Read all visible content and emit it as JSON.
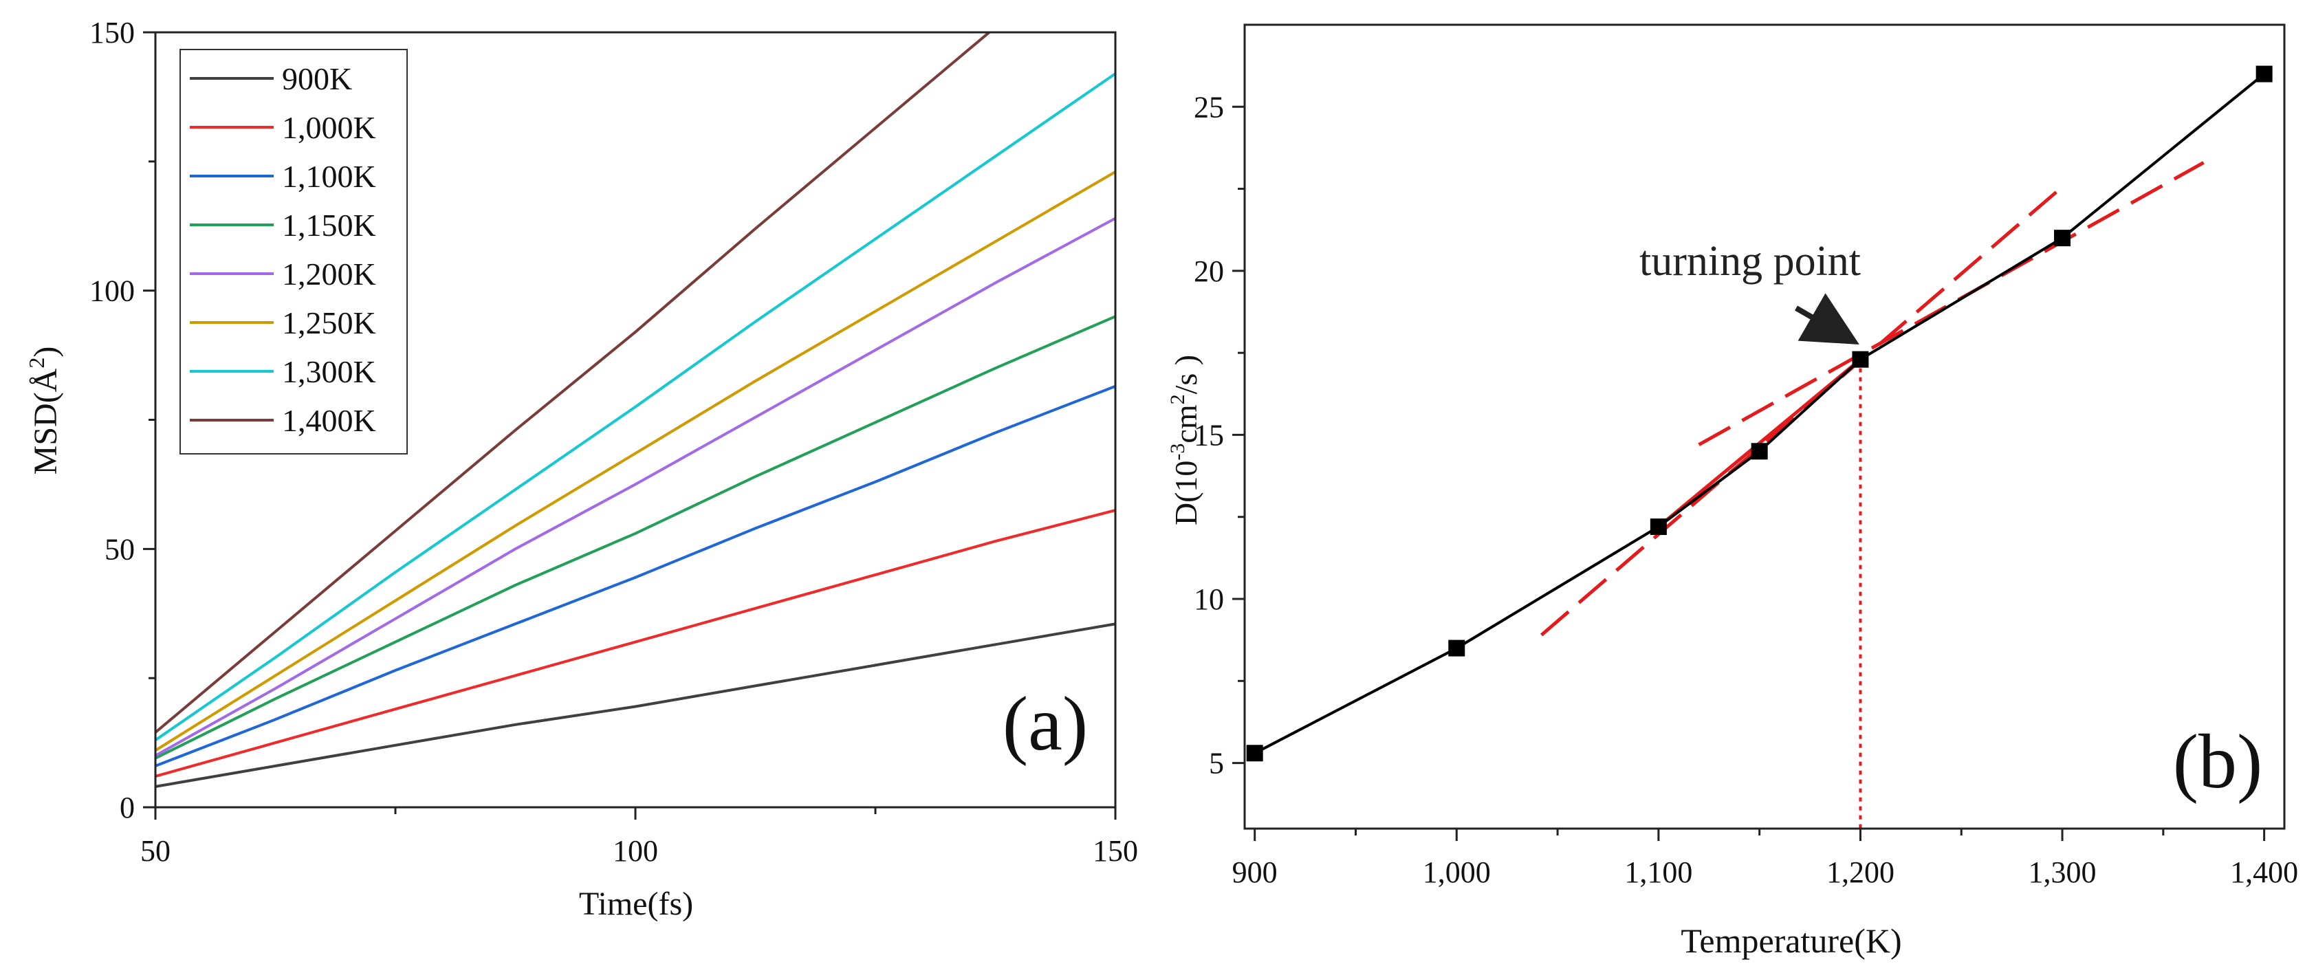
{
  "chart_data": [
    {
      "type": "line",
      "panel_label": "(a)",
      "xlabel": "Time(fs)",
      "ylabel": "MSD(Å²)",
      "ylabel_parts": {
        "base": "MSD(",
        "unit": "Å",
        "sup": "2",
        "close": ")"
      },
      "xlim": [
        50,
        150
      ],
      "ylim": [
        0,
        150
      ],
      "xticks": [
        50,
        100,
        150
      ],
      "yticks": [
        0,
        50,
        100,
        150
      ],
      "grid": false,
      "legend_position": "top-left",
      "x": [
        50,
        62.5,
        75,
        87.5,
        100,
        112.5,
        125,
        137.5,
        150
      ],
      "series": [
        {
          "name": "900K",
          "color": "#404040",
          "values": [
            4,
            8,
            12,
            16,
            19.5,
            23.5,
            27.5,
            31.5,
            35.5
          ]
        },
        {
          "name": "1,000K",
          "color": "#ee2b2b",
          "values": [
            6,
            12.5,
            19,
            25.5,
            32,
            38.5,
            45,
            51.5,
            57.5
          ]
        },
        {
          "name": "1,100K",
          "color": "#1f67d6",
          "values": [
            8,
            17,
            26.5,
            35.5,
            44.5,
            54,
            63,
            72.5,
            81.5
          ]
        },
        {
          "name": "1,150K",
          "color": "#23a058",
          "values": [
            9.5,
            21,
            32,
            43,
            53,
            64,
            74.5,
            85,
            95
          ]
        },
        {
          "name": "1,200K",
          "color": "#a26ae6",
          "values": [
            10,
            23,
            36.5,
            50,
            62.5,
            75.5,
            88.5,
            101.5,
            114
          ]
        },
        {
          "name": "1,250K",
          "color": "#d09a00",
          "values": [
            11,
            25.5,
            40,
            54.5,
            68.5,
            82.5,
            96,
            109.5,
            123
          ]
        },
        {
          "name": "1,300K",
          "color": "#15c8d1",
          "values": [
            13,
            29,
            45.5,
            61.5,
            77.5,
            94,
            110,
            126,
            142
          ]
        },
        {
          "name": "1,400K",
          "color": "#7a3b3b",
          "values": [
            14.5,
            34,
            53.5,
            73,
            92,
            112,
            131.5,
            151,
            null
          ]
        }
      ]
    },
    {
      "type": "line",
      "panel_label": "(b)",
      "xlabel": "Temperature(K)",
      "ylabel_parts": {
        "base": "D(10",
        "exp": "-3",
        "mid": "cm",
        "sup": "2",
        "end": "/s )"
      },
      "xlim": [
        895,
        1410
      ],
      "ylim": [
        3,
        27.5
      ],
      "xticks": [
        900,
        1000,
        1100,
        1200,
        1300,
        1400
      ],
      "xtick_labels": [
        "900",
        "1,000",
        "1,100",
        "1,200",
        "1,300",
        "1,400"
      ],
      "yticks": [
        5,
        10,
        15,
        20,
        25
      ],
      "grid": false,
      "series": [
        {
          "name": "D",
          "color": "#000000",
          "marker": "square",
          "x": [
            900,
            1000,
            1100,
            1150,
            1200,
            1300,
            1400
          ],
          "values": [
            5.3,
            8.5,
            12.2,
            14.5,
            17.3,
            21.0,
            26.0
          ]
        }
      ],
      "fit_lines": [
        {
          "style": "solid",
          "color": "#e41a1c",
          "x": [
            1100,
            1200
          ],
          "values": [
            12.2,
            17.3
          ]
        },
        {
          "style": "dashed",
          "color": "#e41a1c",
          "x": [
            1042,
            1297
          ],
          "values": [
            8.9,
            22.4
          ]
        },
        {
          "style": "dashed",
          "color": "#e41a1c",
          "x": [
            1120,
            1370
          ],
          "values": [
            14.7,
            23.3
          ]
        }
      ],
      "vertical_marker": {
        "x": 1200,
        "style": "dotted",
        "color": "#e41a1c"
      },
      "annotation": {
        "text": "turning point",
        "x": 1200,
        "y": 17.3
      }
    }
  ]
}
